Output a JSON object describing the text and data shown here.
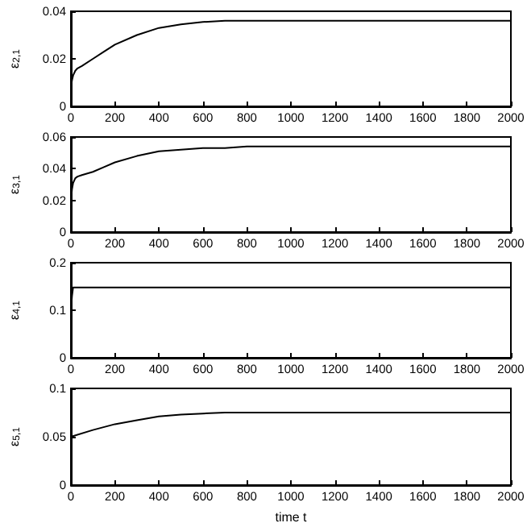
{
  "chart_data": [
    {
      "type": "line",
      "ylabel": "ε$_{2,1}$",
      "x": [
        0,
        5,
        10,
        20,
        30,
        50,
        100,
        150,
        200,
        300,
        400,
        500,
        600,
        700,
        800,
        1000,
        1500,
        2000
      ],
      "series": [
        {
          "color": "#000000",
          "values": [
            0.008,
            0.011,
            0.013,
            0.015,
            0.016,
            0.017,
            0.02,
            0.023,
            0.026,
            0.03,
            0.033,
            0.0345,
            0.0355,
            0.036,
            0.036,
            0.036,
            0.036,
            0.036
          ]
        }
      ],
      "xlim": [
        0,
        2000
      ],
      "xticks": [
        0,
        200,
        400,
        600,
        800,
        1000,
        1200,
        1400,
        1600,
        1800,
        2000
      ],
      "ylim": [
        0,
        0.04
      ],
      "yticks": [
        0,
        0.02,
        0.04
      ],
      "grid": false,
      "line_style": "solid",
      "marker": "none"
    },
    {
      "type": "line",
      "ylabel": "ε$_{3,1}$",
      "x": [
        0,
        5,
        10,
        20,
        30,
        50,
        100,
        150,
        200,
        300,
        400,
        500,
        600,
        700,
        800,
        1000,
        1500,
        2000
      ],
      "series": [
        {
          "color": "#000000",
          "values": [
            0.02,
            0.027,
            0.031,
            0.034,
            0.035,
            0.036,
            0.038,
            0.041,
            0.044,
            0.048,
            0.051,
            0.052,
            0.053,
            0.053,
            0.054,
            0.054,
            0.054,
            0.054
          ]
        }
      ],
      "xlim": [
        0,
        2000
      ],
      "xticks": [
        0,
        200,
        400,
        600,
        800,
        1000,
        1200,
        1400,
        1600,
        1800,
        2000
      ],
      "ylim": [
        0,
        0.06
      ],
      "yticks": [
        0,
        0.02,
        0.04,
        0.06
      ],
      "grid": false,
      "line_style": "solid",
      "marker": "none"
    },
    {
      "type": "line",
      "ylabel": "ε$_{4,1}$",
      "x": [
        0,
        5,
        10,
        20,
        500,
        1000,
        1500,
        2000
      ],
      "series": [
        {
          "color": "#000000",
          "values": [
            0.1,
            0.13,
            0.148,
            0.148,
            0.148,
            0.148,
            0.148,
            0.148
          ]
        }
      ],
      "xlim": [
        0,
        2000
      ],
      "xticks": [
        0,
        200,
        400,
        600,
        800,
        1000,
        1200,
        1400,
        1600,
        1800,
        2000
      ],
      "ylim": [
        0,
        0.2
      ],
      "yticks": [
        0,
        0.1,
        0.2
      ],
      "grid": false,
      "line_style": "solid",
      "marker": "none"
    },
    {
      "type": "line",
      "ylabel": "ε$_{5,1}$",
      "xlabel": "time t",
      "x": [
        0,
        100,
        200,
        300,
        400,
        500,
        600,
        700,
        800,
        1000,
        1500,
        2000
      ],
      "series": [
        {
          "color": "#000000",
          "values": [
            0.05,
            0.057,
            0.063,
            0.067,
            0.071,
            0.073,
            0.074,
            0.075,
            0.075,
            0.075,
            0.075,
            0.075
          ]
        }
      ],
      "xlim": [
        0,
        2000
      ],
      "xticks": [
        0,
        200,
        400,
        600,
        800,
        1000,
        1200,
        1400,
        1600,
        1800,
        2000
      ],
      "ylim": [
        0,
        0.1
      ],
      "yticks": [
        0,
        0.05,
        0.1
      ],
      "grid": false,
      "line_style": "solid",
      "marker": "none"
    }
  ]
}
